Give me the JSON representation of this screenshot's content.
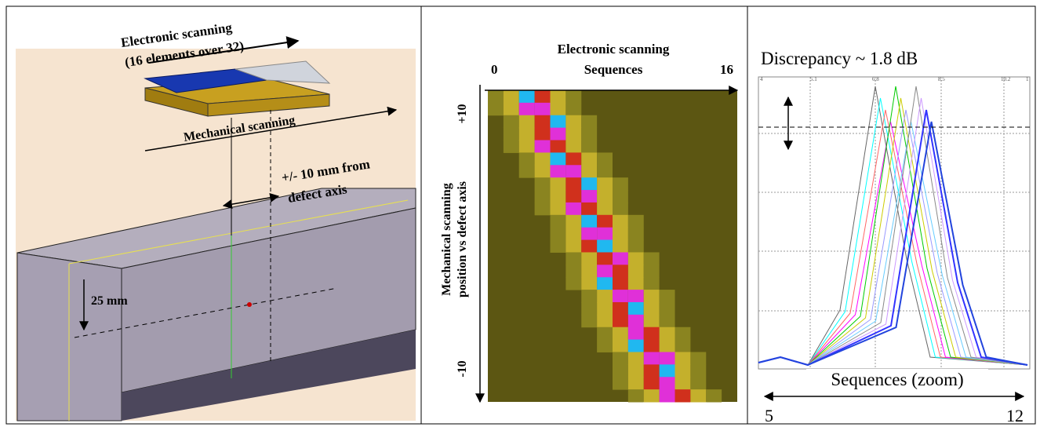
{
  "left_panel": {
    "electronic_scanning": "Electronic scanning",
    "elements": "(16 elements over 32)",
    "mechanical_scanning": "Mechanical scanning",
    "offset": "+/- 10 mm from",
    "offset_2": "defect axis",
    "depth": "25 mm"
  },
  "middle_panel": {
    "title": "Electronic scanning",
    "subtitle": "Sequences",
    "x_start": "0",
    "x_end": "16",
    "y_label": "Mechanical scanning",
    "y_label_2": "position vs defect axis",
    "y_top": "+10",
    "y_bottom": "-10"
  },
  "right_panel": {
    "title": "Discrepancy ~ 1.8 dB",
    "top_ticks": [
      "4",
      "5.1",
      "6.8",
      "8.5",
      "10.2",
      "1"
    ],
    "x_label": "Sequences (zoom)",
    "x_start": "5",
    "x_end": "12"
  }
}
